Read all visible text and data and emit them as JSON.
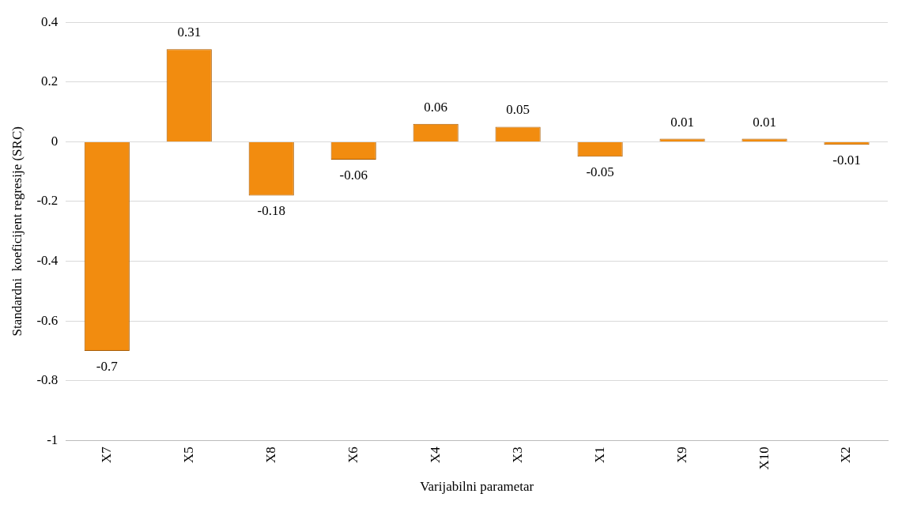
{
  "chart_data": {
    "type": "bar",
    "xlabel": "Varijabilni parametar",
    "ylabel": "Standardni  koeficijent regresije (SRC)",
    "categories": [
      "X7",
      "X5",
      "X8",
      "X6",
      "X4",
      "X3",
      "X1",
      "X9",
      "X10",
      "X2"
    ],
    "values": [
      -0.7,
      0.31,
      -0.18,
      -0.06,
      0.06,
      0.05,
      -0.05,
      0.01,
      0.01,
      -0.01
    ],
    "color": "#f28c0f",
    "ylim": [
      -1,
      0.4
    ],
    "yticks": [
      -1,
      -0.8,
      -0.6,
      -0.4,
      -0.2,
      0,
      0.2,
      0.4
    ],
    "grid": "y",
    "data_labels": true,
    "legend": false
  }
}
